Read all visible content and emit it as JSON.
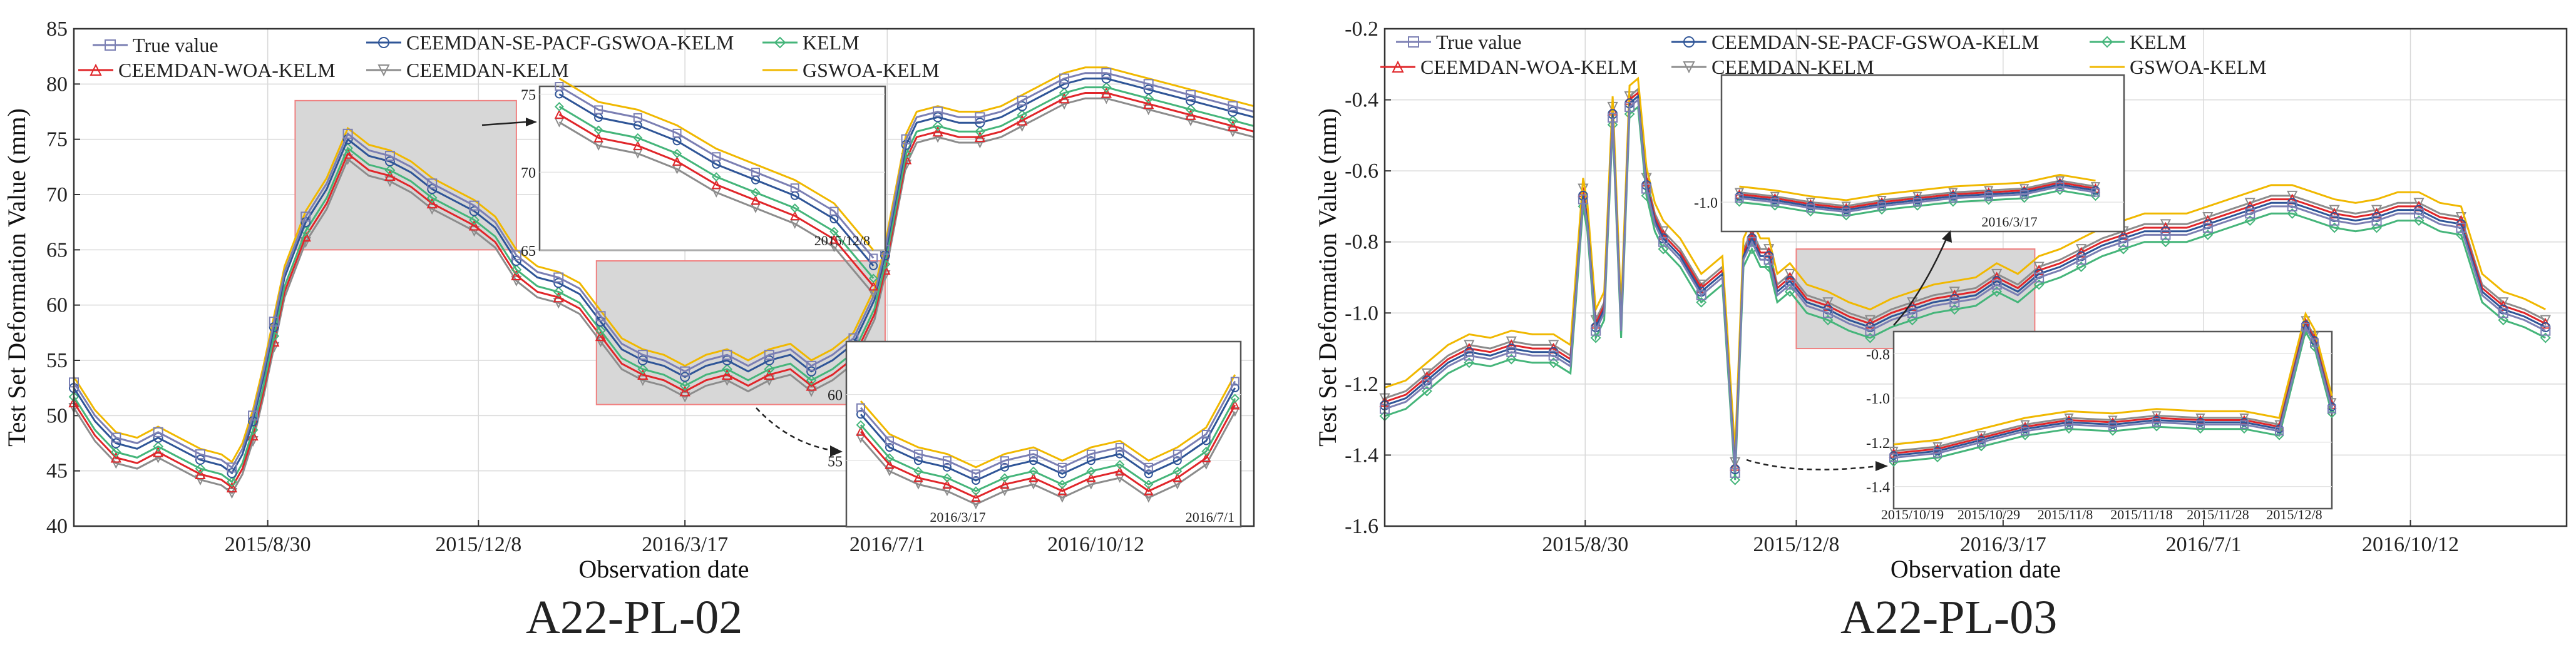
{
  "colors": {
    "true_value": "#7b7fb3",
    "ceemdan_se": "#2f5597",
    "kelm": "#45b57a",
    "ceemdan_woa": "#e0262a",
    "ceemdan_kelm": "#8c8c8c",
    "gswoa": "#f0b800",
    "region_fill": "#d7d7d7",
    "region_edge": "#f08080"
  },
  "chart_data": [
    {
      "type": "line",
      "caption": "A22-PL-02",
      "xlabel": "Observation date",
      "ylabel": "Test Set Deformation Value (mm)",
      "ylim": [
        40,
        85
      ],
      "yticks": [
        40,
        45,
        50,
        55,
        60,
        65,
        70,
        75,
        80,
        85
      ],
      "xlim": [
        0,
        560
      ],
      "xticks": [
        {
          "pos": 92,
          "label": "2015/8/30"
        },
        {
          "pos": 192,
          "label": "2015/12/8"
        },
        {
          "pos": 290,
          "label": "2016/3/17"
        },
        {
          "pos": 386,
          "label": "2016/7/1"
        },
        {
          "pos": 485,
          "label": "2016/10/12"
        }
      ],
      "grid": true,
      "legend": [
        "True value",
        "CEEMDAN-SE-PACF-GSWOA-KELM",
        "KELM",
        "CEEMDAN-WOA-KELM",
        "CEEMDAN-KELM",
        "GSWOA-KELM"
      ],
      "true_series": {
        "x": [
          0,
          10,
          20,
          30,
          40,
          50,
          60,
          70,
          75,
          80,
          85,
          90,
          95,
          100,
          110,
          120,
          130,
          140,
          150,
          160,
          170,
          180,
          190,
          200,
          210,
          220,
          230,
          240,
          250,
          260,
          270,
          280,
          290,
          300,
          310,
          320,
          330,
          340,
          350,
          360,
          370,
          380,
          385,
          390,
          395,
          400,
          410,
          420,
          430,
          440,
          450,
          460,
          470,
          480,
          490,
          500,
          510,
          520,
          530,
          540,
          550,
          560
        ],
        "values": [
          53,
          50,
          48,
          47.5,
          48.5,
          47.5,
          46.5,
          46,
          45.3,
          47,
          50,
          54,
          58.5,
          63,
          68,
          71,
          75.5,
          74,
          73.5,
          72.5,
          71,
          70,
          69,
          67.5,
          64.5,
          63,
          62.5,
          61.5,
          59,
          56.5,
          55.5,
          55,
          54,
          55,
          55.5,
          54.5,
          55.5,
          56,
          54.5,
          55.5,
          57,
          61,
          65,
          70,
          75,
          77,
          77.5,
          77,
          77,
          77.5,
          78.5,
          79.5,
          80.5,
          81,
          81,
          80.5,
          80,
          79.5,
          79,
          78.5,
          78,
          77.5
        ]
      },
      "model_offsets": {
        "CEEMDAN-SE-PACF-GSWOA-KELM": -0.5,
        "KELM": -1.3,
        "CEEMDAN-WOA-KELM": -1.8,
        "CEEMDAN-KELM": -2.3,
        "GSWOA-KELM": 0.5
      },
      "main_regions": [
        {
          "x": [
            105,
            210
          ],
          "y": [
            65,
            78.5
          ]
        },
        {
          "x": [
            248,
            385
          ],
          "y": [
            51,
            64
          ]
        }
      ],
      "insets": [
        {
          "x": [
            125,
            213
          ],
          "y": [
            65,
            75.5
          ],
          "yticks": [
            65,
            70,
            75
          ],
          "label": "2015/12/8"
        },
        {
          "x": [
            245,
            382
          ],
          "y": [
            50,
            64
          ],
          "yticks": [
            55,
            60
          ],
          "labels": [
            "2016/3/17",
            "2016/7/1"
          ]
        }
      ]
    },
    {
      "type": "line",
      "caption": "A22-PL-03",
      "xlabel": "Observation date",
      "ylabel": "Test Set Deformation Value (mm)",
      "ylim": [
        -1.6,
        -0.2
      ],
      "yticks": [
        -1.6,
        -1.4,
        -1.2,
        -1.0,
        -0.8,
        -0.6,
        -0.4,
        -0.2
      ],
      "ytick_labels": [
        "-1.6",
        "-1.4",
        "-1.2",
        "-1.0",
        "-0.8",
        "-0.6",
        "-0.4",
        "-0.2"
      ],
      "xlim": [
        0,
        560
      ],
      "xticks": [
        {
          "pos": 95,
          "label": "2015/8/30"
        },
        {
          "pos": 195,
          "label": "2015/12/8"
        },
        {
          "pos": 293,
          "label": "2016/3/17"
        },
        {
          "pos": 388,
          "label": "2016/7/1"
        },
        {
          "pos": 486,
          "label": "2016/10/12"
        }
      ],
      "grid": true,
      "legend": [
        "True value",
        "CEEMDAN-SE-PACF-GSWOA-KELM",
        "KELM",
        "CEEMDAN-WOA-KELM",
        "CEEMDAN-KELM",
        "GSWOA-KELM"
      ],
      "true_series": {
        "x": [
          0,
          10,
          20,
          30,
          40,
          50,
          60,
          70,
          80,
          88,
          94,
          96,
          100,
          104,
          108,
          112,
          116,
          120,
          124,
          128,
          132,
          140,
          150,
          160,
          166,
          170,
          174,
          178,
          182,
          186,
          192,
          200,
          210,
          220,
          230,
          240,
          250,
          260,
          270,
          280,
          290,
          300,
          310,
          320,
          330,
          340,
          350,
          360,
          370,
          380,
          390,
          400,
          410,
          420,
          430,
          440,
          450,
          460,
          470,
          480,
          490,
          500,
          510,
          520,
          530,
          540,
          550
        ],
        "values": [
          -1.27,
          -1.25,
          -1.2,
          -1.15,
          -1.12,
          -1.13,
          -1.11,
          -1.12,
          -1.12,
          -1.15,
          -0.68,
          -0.75,
          -1.05,
          -1.0,
          -0.45,
          -1.05,
          -0.42,
          -0.4,
          -0.65,
          -0.75,
          -0.8,
          -0.85,
          -0.95,
          -0.9,
          -1.45,
          -0.85,
          -0.8,
          -0.85,
          -0.85,
          -0.95,
          -0.92,
          -0.98,
          -1.0,
          -1.03,
          -1.05,
          -1.02,
          -1.0,
          -0.98,
          -0.97,
          -0.96,
          -0.92,
          -0.95,
          -0.9,
          -0.88,
          -0.85,
          -0.82,
          -0.8,
          -0.78,
          -0.78,
          -0.78,
          -0.76,
          -0.74,
          -0.72,
          -0.7,
          -0.7,
          -0.72,
          -0.74,
          -0.75,
          -0.74,
          -0.72,
          -0.72,
          -0.75,
          -0.76,
          -0.95,
          -1.0,
          -1.02,
          -1.05
        ]
      },
      "model_offsets": {
        "CEEMDAN-SE-PACF-GSWOA-KELM": 0.01,
        "KELM": -0.02,
        "CEEMDAN-WOA-KELM": 0.02,
        "CEEMDAN-KELM": 0.03,
        "GSWOA-KELM": 0.06
      },
      "main_regions": [
        {
          "x": [
            195,
            308
          ],
          "y": [
            -1.1,
            -0.82
          ]
        }
      ],
      "insets": [
        {
          "x": [
            195,
            308
          ],
          "y": [
            -1.15,
            -0.35
          ],
          "yticks": [
            -1.0
          ],
          "ytick_labels": [
            "-1.0"
          ],
          "label": "2016/3/17"
        },
        {
          "x": [
            0,
            100
          ],
          "y": [
            -1.5,
            -0.7
          ],
          "yticks": [
            -1.4,
            -1.2,
            -1.0,
            -0.8
          ],
          "ytick_labels": [
            "-1.4",
            "-1.2",
            "-1.0",
            "-0.8"
          ],
          "xticks": [
            "2015/10/19",
            "2015/10/29",
            "2015/11/8",
            "2015/11/18",
            "2015/11/28",
            "2015/12/8"
          ]
        }
      ]
    }
  ]
}
